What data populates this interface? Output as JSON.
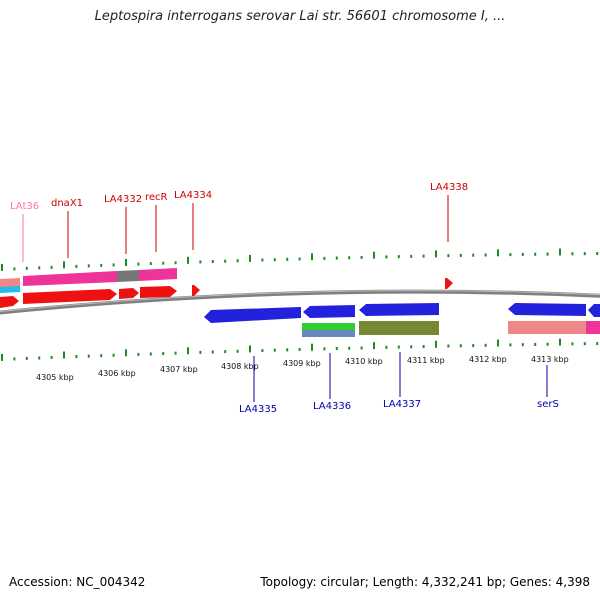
{
  "title": "Leptospira interrogans serovar Lai str. 56601 chromosome I, ...",
  "footer": {
    "accession": "Accession: NC_004342",
    "summary": "Topology: circular; Length: 4,332,241 bp; Genes: 4,398"
  },
  "colors": {
    "backbone": "#808080",
    "tick": "#1f8a1f",
    "forward_label": "#cc0000",
    "reverse_label": "#0000aa",
    "pseudo_label": "#ff7799",
    "cds_forward": "#ee1111",
    "cds_reverse": "#2222dd",
    "gene_pink": "#ee3399",
    "gene_gray": "#777777",
    "gene_cyan": "#22bbee",
    "gene_green": "#33cc33",
    "gene_steel": "#6688bb",
    "gene_olive": "#778833",
    "gene_salmon": "#ee8888"
  },
  "scale_labels": [
    "4305 kbp",
    "4306 kbp",
    "4307 kbp",
    "4308 kbp",
    "4309 kbp",
    "4310 kbp",
    "4311 kbp",
    "4312 kbp",
    "4313 kbp"
  ],
  "forward_genes": [
    "LAt36",
    "dnaX1",
    "LA4332",
    "recR",
    "LA4334",
    "LA4338"
  ],
  "reverse_genes": [
    "LA4335",
    "LA4336",
    "LA4337",
    "serS"
  ]
}
